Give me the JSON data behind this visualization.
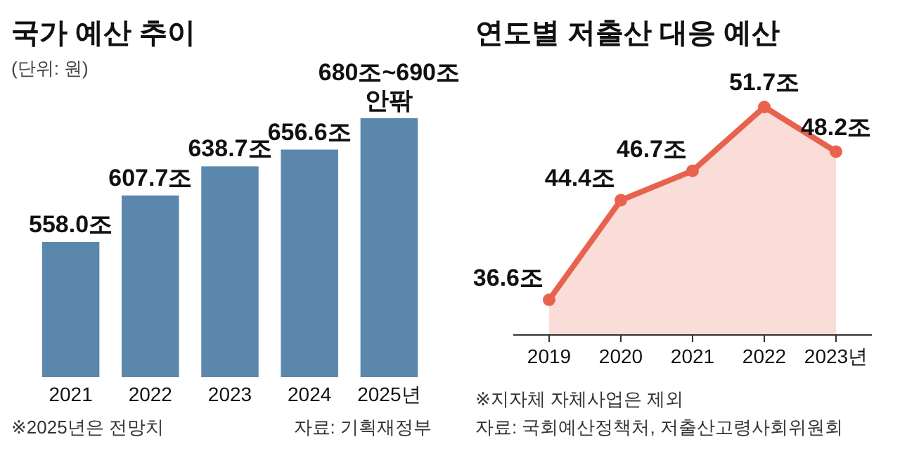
{
  "chart_data": [
    {
      "type": "bar",
      "title": "국가 예산 추이",
      "subtitle": "(단위: 원)",
      "categories": [
        "2021",
        "2022",
        "2023",
        "2024",
        "2025년"
      ],
      "values": [
        558.0,
        607.7,
        638.7,
        656.6,
        690
      ],
      "value_labels": [
        "558.0조",
        "607.7조",
        "638.7조",
        "656.6조",
        "680조~690조\n안팎"
      ],
      "color": "#5b87ad",
      "ylim": [
        414,
        690
      ],
      "annotations": [
        "※2025년은 전망치",
        "자료: 기획재정부"
      ]
    },
    {
      "type": "area",
      "title": "연도별 저출산 대응 예산",
      "categories": [
        "2019",
        "2020",
        "2021",
        "2022",
        "2023년"
      ],
      "values": [
        36.6,
        44.4,
        46.7,
        51.7,
        48.2
      ],
      "value_labels": [
        "36.6조",
        "44.4조",
        "46.7조",
        "51.7조",
        "48.2조"
      ],
      "color": "#e8634f",
      "marker": "circle",
      "annotations": [
        "※지자체 자체사업은 제외",
        "자료: 국회예산정책처, 저출산고령사회위원회"
      ]
    }
  ]
}
